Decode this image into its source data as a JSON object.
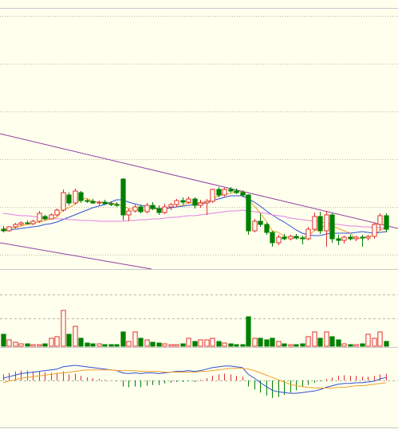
{
  "chart_data": [
    {
      "type": "candlestick",
      "xlim": [
        -0.5,
        66
      ],
      "ylim": [
        0.2,
        33
      ],
      "yticks": [
        2,
        8,
        14,
        20,
        26,
        32
      ],
      "grid": true,
      "up_color": "#e03030",
      "down_color": "#008000",
      "candles": [
        [
          5.2,
          5.6,
          4.8,
          5.0
        ],
        [
          5.0,
          5.6,
          4.9,
          5.5
        ],
        [
          5.5,
          6.0,
          5.3,
          5.8
        ],
        [
          5.8,
          6.2,
          5.6,
          6.0
        ],
        [
          6.0,
          6.3,
          5.8,
          5.9
        ],
        [
          5.9,
          6.4,
          5.7,
          6.2
        ],
        [
          6.2,
          7.5,
          6.0,
          7.2
        ],
        [
          6.8,
          7.0,
          6.3,
          6.5
        ],
        [
          6.5,
          7.2,
          6.4,
          7.0
        ],
        [
          7.0,
          7.8,
          6.8,
          7.6
        ],
        [
          7.6,
          10.2,
          7.4,
          9.8
        ],
        [
          9.5,
          9.8,
          8.2,
          8.5
        ],
        [
          8.5,
          10.3,
          8.3,
          10.0
        ],
        [
          9.8,
          10.0,
          8.5,
          8.8
        ],
        [
          8.8,
          9.0,
          8.5,
          8.7
        ],
        [
          8.7,
          9.0,
          8.4,
          8.5
        ],
        [
          8.5,
          8.8,
          8.2,
          8.6
        ],
        [
          8.6,
          8.9,
          8.3,
          8.4
        ],
        [
          8.4,
          8.7,
          8.1,
          8.3
        ],
        [
          8.3,
          8.6,
          8.0,
          8.2
        ],
        [
          11.5,
          11.6,
          6.3,
          7.0
        ],
        [
          7.0,
          7.8,
          6.2,
          7.5
        ],
        [
          7.5,
          8.3,
          7.3,
          8.0
        ],
        [
          8.0,
          8.3,
          7.2,
          7.4
        ],
        [
          7.4,
          8.5,
          7.2,
          8.2
        ],
        [
          8.2,
          8.6,
          7.6,
          7.8
        ],
        [
          7.8,
          8.2,
          7.0,
          7.3
        ],
        [
          7.3,
          8.4,
          7.1,
          8.0
        ],
        [
          8.0,
          8.5,
          7.6,
          8.3
        ],
        [
          8.3,
          9.0,
          8.0,
          8.8
        ],
        [
          8.8,
          9.2,
          8.3,
          8.6
        ],
        [
          8.6,
          9.3,
          8.4,
          9.0
        ],
        [
          9.0,
          9.2,
          7.8,
          8.2
        ],
        [
          8.2,
          8.9,
          7.9,
          8.5
        ],
        [
          8.5,
          9.0,
          7.0,
          8.7
        ],
        [
          8.7,
          10.3,
          8.5,
          10.2
        ],
        [
          10.2,
          10.5,
          9.2,
          9.5
        ],
        [
          9.5,
          10.4,
          9.3,
          10.2
        ],
        [
          10.2,
          10.5,
          9.8,
          10.0
        ],
        [
          10.0,
          10.3,
          9.6,
          9.8
        ],
        [
          9.8,
          10.1,
          9.2,
          9.5
        ],
        [
          9.5,
          9.6,
          4.5,
          5.0
        ],
        [
          5.0,
          6.5,
          4.8,
          6.2
        ],
        [
          6.2,
          7.2,
          5.5,
          5.8
        ],
        [
          5.8,
          6.0,
          4.5,
          4.8
        ],
        [
          4.8,
          5.0,
          3.0,
          3.5
        ],
        [
          3.5,
          4.5,
          3.2,
          4.2
        ],
        [
          4.2,
          4.6,
          3.8,
          4.0
        ],
        [
          4.0,
          4.5,
          3.8,
          4.3
        ],
        [
          4.3,
          4.6,
          3.9,
          4.1
        ],
        [
          4.1,
          4.4,
          3.3,
          4.0
        ],
        [
          4.0,
          5.5,
          3.8,
          5.2
        ],
        [
          5.2,
          7.3,
          5.0,
          6.8
        ],
        [
          6.8,
          7.4,
          4.6,
          5.0
        ],
        [
          5.0,
          7.5,
          3.0,
          7.0
        ],
        [
          7.0,
          7.2,
          3.5,
          4.0
        ],
        [
          4.0,
          4.5,
          3.2,
          3.8
        ],
        [
          3.8,
          4.4,
          3.4,
          4.2
        ],
        [
          4.2,
          4.5,
          3.8,
          4.0
        ],
        [
          4.0,
          4.4,
          3.7,
          4.2
        ],
        [
          4.2,
          4.5,
          3.0,
          4.1
        ],
        [
          4.1,
          4.5,
          3.8,
          4.3
        ],
        [
          4.3,
          6.0,
          4.0,
          5.8
        ],
        [
          5.8,
          7.2,
          5.0,
          6.9
        ],
        [
          6.9,
          7.2,
          4.8,
          5.2
        ]
      ],
      "series": [
        {
          "color": "#f0a030",
          "values": [
            5.3,
            5.3,
            5.4,
            5.6,
            5.8,
            5.9,
            6.1,
            6.3,
            6.5,
            6.7,
            7.6,
            7.9,
            8.3,
            8.9,
            9.1,
            8.7,
            8.6,
            8.6,
            8.5,
            8.4,
            8.1,
            7.8,
            7.7,
            7.6,
            7.6,
            7.8,
            7.7,
            7.7,
            7.9,
            8.0,
            8.2,
            8.5,
            8.5,
            8.6,
            8.6,
            9.0,
            9.4,
            9.6,
            9.7,
            9.9,
            9.9,
            8.9,
            8.1,
            7.2,
            6.2,
            5.0,
            4.8,
            4.3,
            4.2,
            4.1,
            4.1,
            4.4,
            5.0,
            5.2,
            5.8,
            5.6,
            5.3,
            5.0,
            4.7,
            4.0,
            4.1,
            4.2,
            4.5,
            5.1,
            5.3
          ]
        },
        {
          "color": "#3050d0",
          "values": [
            5.0,
            5.1,
            5.2,
            5.3,
            5.4,
            5.5,
            5.6,
            5.8,
            5.9,
            6.1,
            6.4,
            6.7,
            7.0,
            7.3,
            7.6,
            7.9,
            8.1,
            8.3,
            8.6,
            8.9,
            8.9,
            8.6,
            8.4,
            8.2,
            8.1,
            7.9,
            7.8,
            7.8,
            7.9,
            8.0,
            8.1,
            8.2,
            8.3,
            8.4,
            8.5,
            8.8,
            9.0,
            9.2,
            9.4,
            9.4,
            9.4,
            9.0,
            8.6,
            8.1,
            7.5,
            7.0,
            6.5,
            6.1,
            5.6,
            5.1,
            4.7,
            4.5,
            4.4,
            4.4,
            4.6,
            4.7,
            4.7,
            4.7,
            4.7,
            4.8,
            4.9,
            4.8,
            4.7,
            4.8,
            4.9
          ]
        },
        {
          "color": "#e080e0",
          "values": [
            7.2,
            7.1,
            7.0,
            6.9,
            6.9,
            6.8,
            6.7,
            6.6,
            6.6,
            6.5,
            6.5,
            6.4,
            6.4,
            6.3,
            6.3,
            6.3,
            6.2,
            6.2,
            6.2,
            6.2,
            6.2,
            6.3,
            6.3,
            6.4,
            6.4,
            6.5,
            6.5,
            6.6,
            6.7,
            6.7,
            6.8,
            6.9,
            6.9,
            7.0,
            7.1,
            7.2,
            7.3,
            7.4,
            7.5,
            7.5,
            7.6,
            7.5,
            7.4,
            7.3,
            7.2,
            7.0,
            6.9,
            6.8,
            6.6,
            6.5,
            6.4,
            6.3,
            6.2,
            6.1,
            6.0,
            5.9,
            5.8,
            5.7,
            5.6,
            5.6,
            5.5,
            5.5,
            5.4,
            5.4,
            5.3
          ]
        }
      ],
      "trendlines": [
        {
          "color": "#9040a0",
          "x": [
            -0.5,
            66
          ],
          "y": [
            17.2,
            5.3
          ]
        },
        {
          "color": "#9040a0",
          "x": [
            -0.5,
            24.8
          ],
          "y": [
            3.5,
            0.2
          ]
        }
      ]
    },
    {
      "type": "volume",
      "xlim": [
        -0.5,
        66
      ],
      "ylim": [
        0,
        9.5
      ],
      "yticks": [
        3.5,
        6.5
      ],
      "grid": true,
      "values": [
        1.5,
        0.8,
        0.5,
        0.3,
        0.3,
        0.2,
        0.2,
        0.3,
        1.0,
        1.2,
        4.5,
        1.5,
        2.5,
        1.0,
        0.4,
        0.3,
        0.3,
        0.2,
        0.2,
        0.2,
        1.8,
        0.6,
        1.8,
        1.0,
        0.8,
        0.5,
        0.4,
        0.3,
        0.2,
        0.2,
        0.3,
        1.0,
        0.6,
        0.8,
        0.8,
        1.0,
        0.6,
        0.4,
        0.3,
        0.2,
        0.2,
        3.7,
        1.0,
        1.0,
        0.8,
        1.0,
        0.6,
        0.3,
        0.2,
        0.2,
        0.3,
        1.2,
        1.8,
        1.0,
        1.8,
        1.2,
        0.8,
        0.3,
        0.2,
        0.2,
        0.3,
        1.5,
        1.0,
        1.8,
        0.6
      ]
    },
    {
      "type": "macd",
      "xlim": [
        -0.5,
        66
      ],
      "ylim": [
        -6,
        4
      ],
      "yticks": [
        0
      ],
      "grid": true,
      "histogram": [
        0.8,
        1.0,
        1.2,
        1.3,
        1.3,
        1.2,
        1.2,
        1.1,
        1.0,
        1.0,
        1.2,
        0.8,
        0.9,
        0.6,
        0.4,
        0.3,
        0.2,
        0.1,
        0.0,
        -0.1,
        -0.8,
        -0.9,
        -0.8,
        -0.9,
        -0.7,
        -0.6,
        -0.6,
        -0.4,
        -0.3,
        -0.2,
        -0.2,
        -0.1,
        -0.2,
        0.1,
        0.3,
        0.6,
        0.8,
        0.9,
        0.8,
        0.6,
        0.5,
        -0.8,
        -1.2,
        -1.6,
        -2.0,
        -2.3,
        -2.2,
        -1.9,
        -1.6,
        -1.3,
        -0.9,
        -0.6,
        -0.3,
        -0.1,
        0.2,
        0.4,
        0.6,
        0.7,
        0.6,
        0.6,
        0.5,
        0.5,
        0.6,
        0.8,
        0.9
      ],
      "series": [
        {
          "color": "#3050d0",
          "values": [
            0.3,
            0.5,
            0.7,
            0.9,
            1.0,
            1.1,
            1.2,
            1.3,
            1.4,
            1.5,
            1.8,
            1.9,
            2.0,
            1.9,
            1.8,
            1.7,
            1.6,
            1.5,
            1.4,
            1.3,
            1.0,
            0.9,
            1.0,
            0.9,
            1.0,
            1.0,
            0.9,
            1.0,
            1.1,
            1.2,
            1.2,
            1.3,
            1.2,
            1.3,
            1.5,
            1.7,
            1.8,
            1.9,
            1.9,
            1.8,
            1.7,
            0.8,
            0.3,
            -0.3,
            -0.8,
            -1.3,
            -1.5,
            -1.6,
            -1.7,
            -1.7,
            -1.6,
            -1.5,
            -1.4,
            -1.2,
            -0.9,
            -0.7,
            -0.5,
            -0.4,
            -0.4,
            -0.3,
            -0.3,
            -0.2,
            -0.1,
            0.2,
            0.4
          ]
        },
        {
          "color": "#f0a030",
          "values": [
            -0.3,
            -0.1,
            0.1,
            0.3,
            0.4,
            0.5,
            0.6,
            0.7,
            0.8,
            0.9,
            1.0,
            1.1,
            1.2,
            1.3,
            1.4,
            1.4,
            1.4,
            1.4,
            1.4,
            1.3,
            1.3,
            1.3,
            1.3,
            1.2,
            1.2,
            1.2,
            1.2,
            1.1,
            1.1,
            1.1,
            1.1,
            1.1,
            1.1,
            1.2,
            1.2,
            1.3,
            1.4,
            1.5,
            1.6,
            1.6,
            1.6,
            1.5,
            1.3,
            1.0,
            0.7,
            0.4,
            0.1,
            -0.2,
            -0.5,
            -0.7,
            -0.8,
            -0.9,
            -1.0,
            -1.0,
            -1.0,
            -1.0,
            -0.9,
            -0.9,
            -0.8,
            -0.7,
            -0.7,
            -0.6,
            -0.5,
            -0.4,
            -0.3
          ]
        }
      ]
    }
  ]
}
